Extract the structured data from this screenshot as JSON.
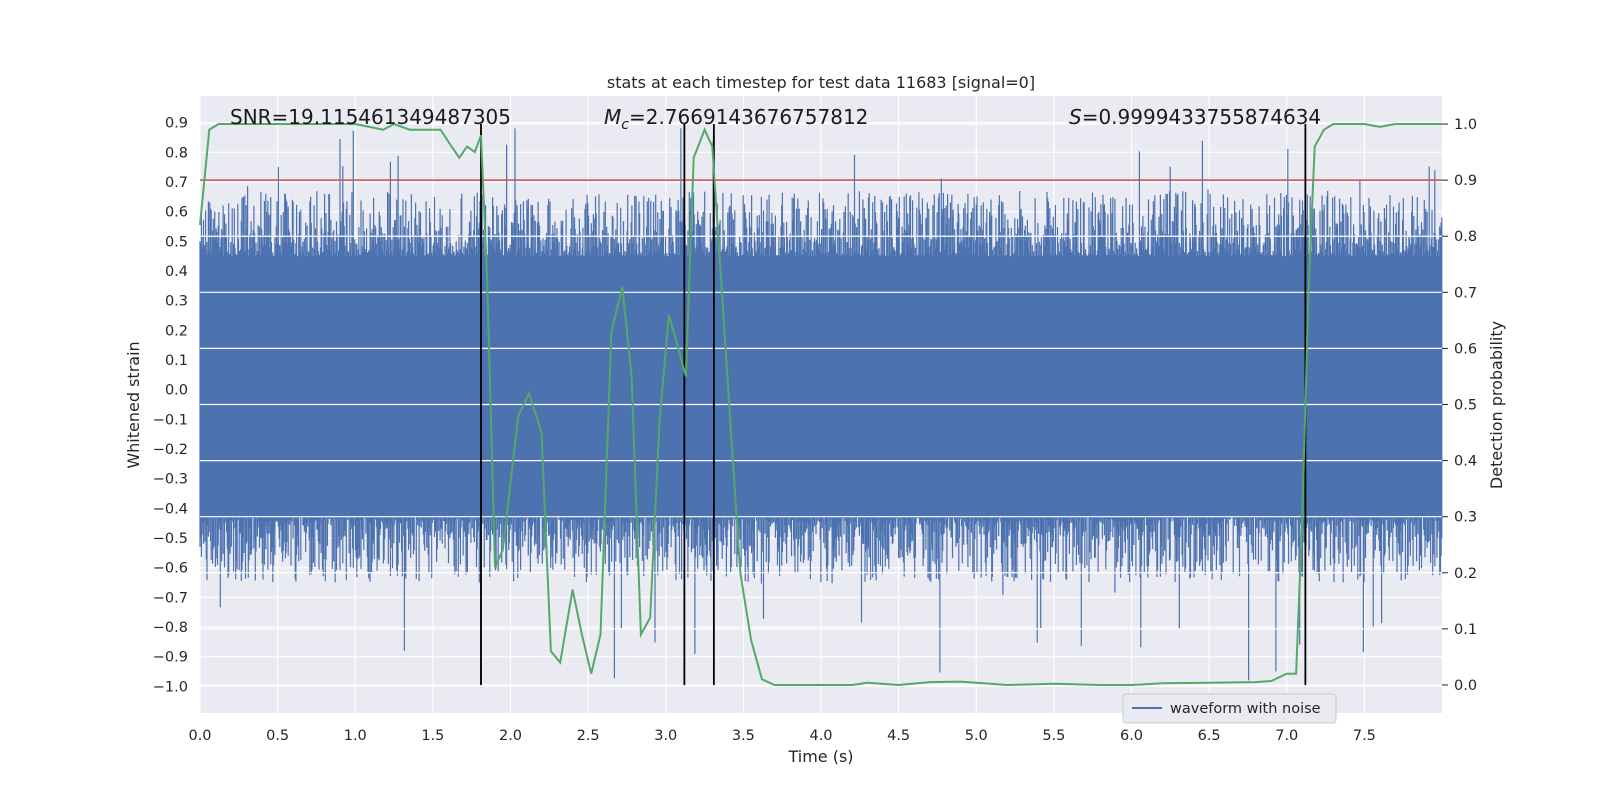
{
  "chart_data": {
    "type": "line",
    "title": "stats at each timestep for test data 11683 [signal=0]",
    "xlabel": "Time (s)",
    "ylabel": "Whitened strain",
    "y2label": "Detection probability",
    "xlim": [
      0.0,
      8.0
    ],
    "ylim": [
      -1.09,
      0.99
    ],
    "y2lim": [
      -0.05,
      1.05
    ],
    "x_ticks": [
      "0.0",
      "0.5",
      "1.0",
      "1.5",
      "2.0",
      "2.5",
      "3.0",
      "3.5",
      "4.0",
      "4.5",
      "5.0",
      "5.5",
      "6.0",
      "6.5",
      "7.0",
      "7.5"
    ],
    "y_ticks": [
      "0.9",
      "0.8",
      "0.7",
      "0.6",
      "0.5",
      "0.4",
      "0.3",
      "0.2",
      "0.1",
      "0.0",
      "−0.1",
      "−0.2",
      "−0.3",
      "−0.4",
      "−0.5",
      "−0.6",
      "−0.7",
      "−0.8",
      "−0.9",
      "−1.0"
    ],
    "y2_ticks": [
      "1.0",
      "0.9",
      "0.8",
      "0.7",
      "0.6",
      "0.5",
      "0.4",
      "0.3",
      "0.2",
      "0.1",
      "0.0"
    ],
    "annotations": {
      "snr": "SNR=19.115461349487305",
      "mc_symbol": "M",
      "mc_sub": "c",
      "mc_value": "=2.7669143676757812",
      "s_symbol": "S",
      "s_value": "=0.9999433755874634"
    },
    "threshold": {
      "y2": 0.9,
      "color": "#c44e52"
    },
    "vertical_lines": [
      1.81,
      3.12,
      3.31,
      7.12
    ],
    "legend": {
      "label": "waveform with noise",
      "location": "bottom-right"
    },
    "series": [
      {
        "name": "waveform with noise",
        "axis": "left",
        "color": "#4c72b0",
        "noise_envelope": {
          "core": [
            -0.43,
            0.45
          ],
          "peak_max": 0.89,
          "peak_min": -1.0
        }
      },
      {
        "name": "Detection probability",
        "axis": "right",
        "color": "#55a868",
        "x": [
          0.0,
          0.06,
          0.12,
          0.5,
          1.0,
          1.18,
          1.25,
          1.35,
          1.45,
          1.55,
          1.62,
          1.67,
          1.72,
          1.77,
          1.81,
          1.85,
          1.9,
          1.95,
          2.05,
          2.12,
          2.2,
          2.26,
          2.32,
          2.4,
          2.46,
          2.52,
          2.58,
          2.65,
          2.72,
          2.78,
          2.84,
          2.9,
          2.96,
          3.02,
          3.08,
          3.13,
          3.18,
          3.25,
          3.3,
          3.35,
          3.42,
          3.48,
          3.55,
          3.62,
          3.7,
          3.8,
          4.0,
          4.2,
          4.3,
          4.5,
          4.7,
          4.9,
          5.0,
          5.2,
          5.5,
          5.8,
          6.0,
          6.2,
          6.5,
          6.8,
          6.9,
          7.0,
          7.06,
          7.1,
          7.14,
          7.18,
          7.24,
          7.3,
          7.5,
          7.6,
          7.7,
          8.0
        ],
        "y": [
          0.82,
          0.99,
          1.0,
          1.0,
          1.0,
          0.99,
          1.0,
          0.99,
          0.99,
          0.99,
          0.96,
          0.94,
          0.96,
          0.95,
          0.98,
          0.72,
          0.21,
          0.24,
          0.48,
          0.52,
          0.45,
          0.06,
          0.04,
          0.17,
          0.09,
          0.02,
          0.09,
          0.63,
          0.71,
          0.55,
          0.09,
          0.12,
          0.47,
          0.66,
          0.6,
          0.55,
          0.94,
          0.99,
          0.96,
          0.75,
          0.45,
          0.2,
          0.08,
          0.01,
          0.0,
          0.0,
          0.0,
          0.0,
          0.004,
          0.0,
          0.005,
          0.006,
          0.004,
          0.0,
          0.002,
          0.0,
          0.0,
          0.003,
          0.004,
          0.005,
          0.007,
          0.02,
          0.02,
          0.3,
          0.7,
          0.96,
          0.99,
          1.0,
          1.0,
          0.995,
          1.0,
          1.0
        ]
      }
    ]
  }
}
